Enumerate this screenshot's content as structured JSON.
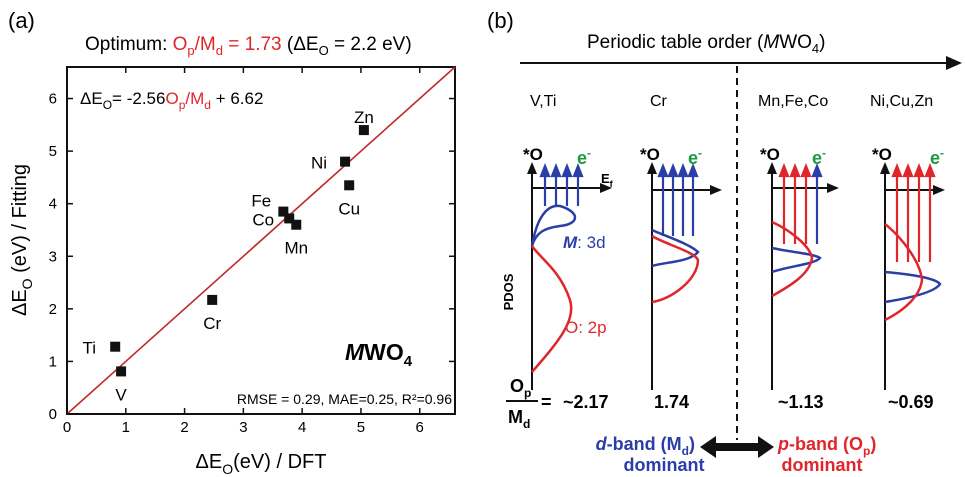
{
  "panel_a": {
    "label": "(a)",
    "header": {
      "prefix": "Optimum: ",
      "ratio_label": "O",
      "ratio_label_sub": "p",
      "ratio_label_mid": "/M",
      "ratio_label_sub2": "d",
      "ratio_value": " = 1.73",
      "delta_text": " (ΔE",
      "delta_sub": "O",
      "delta_value": " = 2.2 eV)"
    },
    "equation": {
      "lhs": "ΔE",
      "lhs_sub": "O",
      "eq": "= -2.56",
      "ratio_o": "O",
      "ratio_o_sub": "p",
      "ratio_m": "/M",
      "ratio_m_sub": "d",
      "rest": " + 6.62"
    },
    "compound": "MWO",
    "compound_italic": "M",
    "compound_rest": "WO",
    "compound_sub": "4",
    "stats": "RMSE = 0.29, MAE=0.25, R²=0.96"
  },
  "chart_data": {
    "type": "scatter",
    "xlabel": "ΔE_O(eV) / DFT",
    "ylabel": "ΔE_O (eV) / Fitting",
    "xlim": [
      0,
      6.6
    ],
    "ylim": [
      0,
      6.6
    ],
    "x_ticks": [
      "0",
      "1",
      "2",
      "3",
      "4",
      "5",
      "6"
    ],
    "y_ticks": [
      "0",
      "1",
      "2",
      "3",
      "4",
      "5",
      "6"
    ],
    "fit_line": {
      "x": [
        0,
        6.6
      ],
      "y": [
        0,
        6.6
      ]
    },
    "points": [
      {
        "label": "Ti",
        "x": 0.82,
        "y": 1.28,
        "label_pos": "left"
      },
      {
        "label": "V",
        "x": 0.92,
        "y": 0.81,
        "label_pos": "below"
      },
      {
        "label": "Cr",
        "x": 2.47,
        "y": 2.17,
        "label_pos": "below"
      },
      {
        "label": "Fe",
        "x": 3.68,
        "y": 3.85,
        "label_pos": "upleft"
      },
      {
        "label": "Co",
        "x": 3.78,
        "y": 3.72,
        "label_pos": "left"
      },
      {
        "label": "Mn",
        "x": 3.9,
        "y": 3.6,
        "label_pos": "below"
      },
      {
        "label": "Ni",
        "x": 4.73,
        "y": 4.8,
        "label_pos": "left"
      },
      {
        "label": "Cu",
        "x": 4.8,
        "y": 4.35,
        "label_pos": "below"
      },
      {
        "label": "Zn",
        "x": 5.05,
        "y": 5.4,
        "label_pos": "above"
      }
    ]
  },
  "panel_b": {
    "label": "(b)",
    "order_title": "Periodic table order (",
    "order_title_m": "M",
    "order_title_rest": "WO",
    "order_title_sub": "4",
    "order_title_end": ")",
    "groups": [
      "V,Ti",
      "Cr",
      "Mn,Fe,Co",
      "Ni,Cu,Zn"
    ],
    "o_star": "*O",
    "electron": "e",
    "electron_sup": "-",
    "ef": "E",
    "ef_sub": "f",
    "pdos": "PDOS",
    "m3d": "M",
    "m3d_rest": ": 3d",
    "o2p": "O: 2p",
    "ratio_top": "O",
    "ratio_top_sub": "p",
    "ratio_bottom": "M",
    "ratio_bottom_sub": "d",
    "ratio_eq": "=",
    "ratios": [
      "~2.17",
      "1.74",
      "~1.13",
      "~0.69"
    ],
    "dband_italic": "d",
    "dband_rest": "-band (M",
    "dband_sub": "d",
    "dband_end": ")",
    "dband_line2": "dominant",
    "pband_italic": "p",
    "pband_rest": "-band (O",
    "pband_sub": "p",
    "pband_end": ")",
    "pband_line2": "dominant",
    "colors": {
      "red": "#e0262b",
      "blue": "#2b3ea8",
      "green": "#1a9b3c",
      "fit": "#c0292c"
    }
  }
}
